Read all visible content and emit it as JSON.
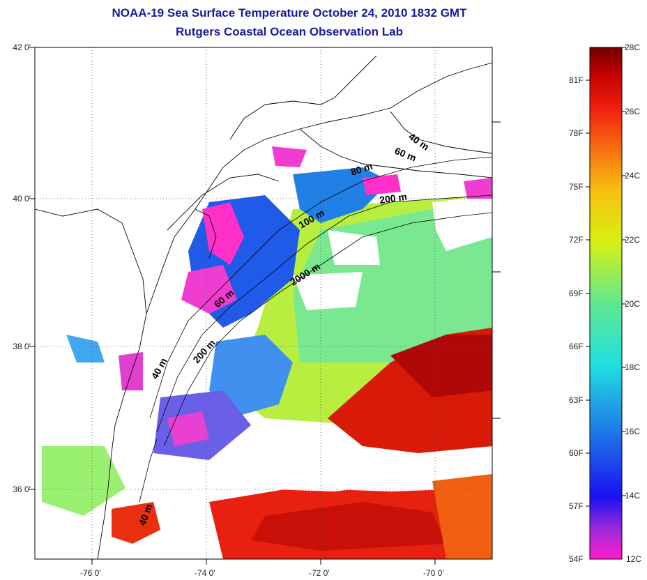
{
  "title": "NOAA-19 Sea Surface Temperature October 24, 2010 1832 GMT",
  "subtitle": "Rutgers Coastal Ocean Observation Lab",
  "map": {
    "lat_labels": [
      "42 0'",
      "40 0'",
      "38 0'",
      "36 0'"
    ],
    "lon_labels": [
      "-76 0'",
      "-74 0'",
      "-72 0'",
      "-70 0'"
    ],
    "depth_labels": [
      "40 m",
      "60 m",
      "80 m",
      "200 m",
      "100 m",
      "2000 m",
      "60 m",
      "200 m",
      "40 m",
      "40 m"
    ]
  },
  "colorbar": {
    "celsius_labels": [
      "28C",
      "26C",
      "24C",
      "22C",
      "20C",
      "18C",
      "16C",
      "14C",
      "12C"
    ],
    "fahrenheit_labels": [
      "81F",
      "78F",
      "75F",
      "72F",
      "69F",
      "66F",
      "63F",
      "60F",
      "57F",
      "54F"
    ],
    "gradient_colors": [
      "#ff1cd0",
      "#9a2ad8",
      "#1a10f0",
      "#1f7ae8",
      "#20e0e0",
      "#60e890",
      "#d8f010",
      "#f8c010",
      "#f87010",
      "#f02010",
      "#c00000",
      "#700000"
    ]
  }
}
